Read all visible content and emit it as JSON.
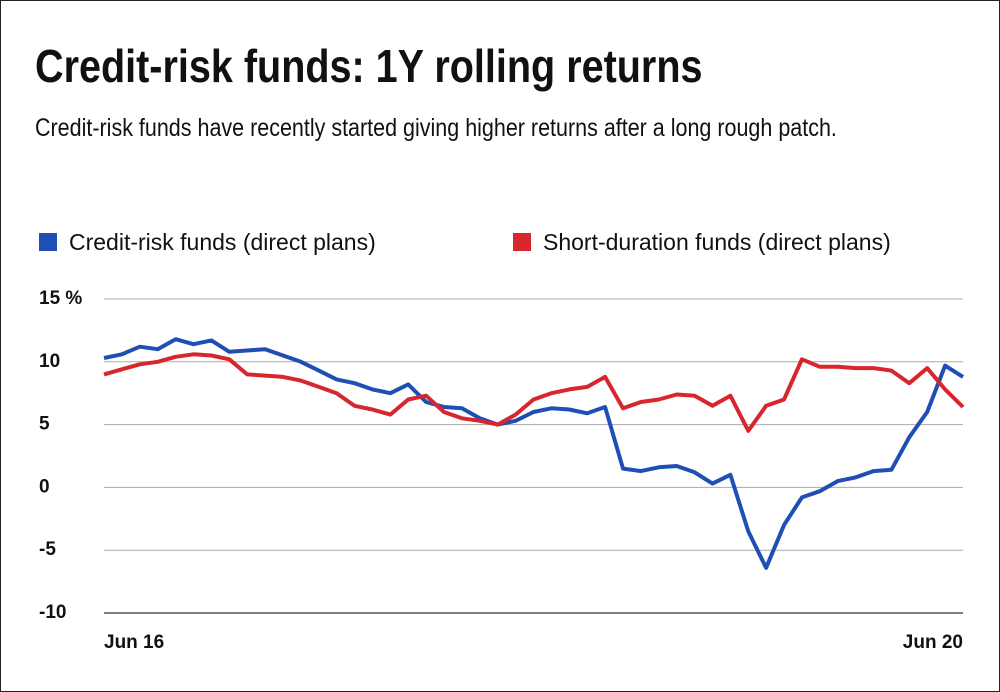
{
  "chart_data": {
    "type": "line",
    "title": "Credit-risk funds: 1Y rolling returns",
    "subtitle": "Credit-risk funds have recently started giving higher returns after a long rough patch.",
    "categories": [
      "Jun 16",
      null,
      null,
      null,
      null,
      null,
      null,
      null,
      null,
      null,
      null,
      null,
      null,
      null,
      null,
      null,
      null,
      null,
      null,
      null,
      null,
      null,
      null,
      null,
      null,
      null,
      null,
      null,
      null,
      null,
      null,
      null,
      null,
      null,
      null,
      null,
      null,
      null,
      null,
      null,
      null,
      null,
      null,
      null,
      null,
      null,
      null,
      null,
      "Jun 20"
    ],
    "series": [
      {
        "name": "Credit-risk funds (direct plans)",
        "color": "#1f4fb4",
        "values": [
          10.3,
          10.6,
          11.2,
          11.0,
          11.8,
          11.4,
          11.7,
          10.8,
          10.9,
          11.0,
          10.5,
          10.0,
          9.3,
          8.6,
          8.3,
          7.8,
          7.5,
          8.2,
          6.8,
          6.4,
          6.3,
          5.5,
          5.0,
          5.3,
          6.0,
          6.3,
          6.2,
          5.9,
          6.4,
          1.5,
          1.3,
          1.6,
          1.7,
          1.2,
          0.3,
          1.0,
          -3.5,
          -6.4,
          -3.0,
          -0.8,
          -0.3,
          0.5,
          0.8,
          1.3,
          1.4,
          4.0,
          6.0,
          9.7,
          8.8
        ]
      },
      {
        "name": "Short-duration funds (direct plans)",
        "color": "#d7262d",
        "values": [
          9.0,
          9.4,
          9.8,
          10.0,
          10.4,
          10.6,
          10.5,
          10.2,
          9.0,
          8.9,
          8.8,
          8.5,
          8.0,
          7.5,
          6.5,
          6.2,
          5.8,
          7.0,
          7.3,
          6.0,
          5.5,
          5.3,
          5.0,
          5.8,
          7.0,
          7.5,
          7.8,
          8.0,
          8.8,
          6.3,
          6.8,
          7.0,
          7.4,
          7.3,
          6.5,
          7.3,
          4.5,
          6.5,
          7.0,
          10.2,
          9.6,
          9.6,
          9.5,
          9.5,
          9.3,
          8.3,
          9.5,
          7.8,
          6.4
        ]
      }
    ],
    "ylim": [
      -10,
      15
    ],
    "yticks": [
      -10,
      -5,
      0,
      5,
      10,
      {
        "value": 15,
        "label": "15 %"
      }
    ],
    "grid": true
  }
}
